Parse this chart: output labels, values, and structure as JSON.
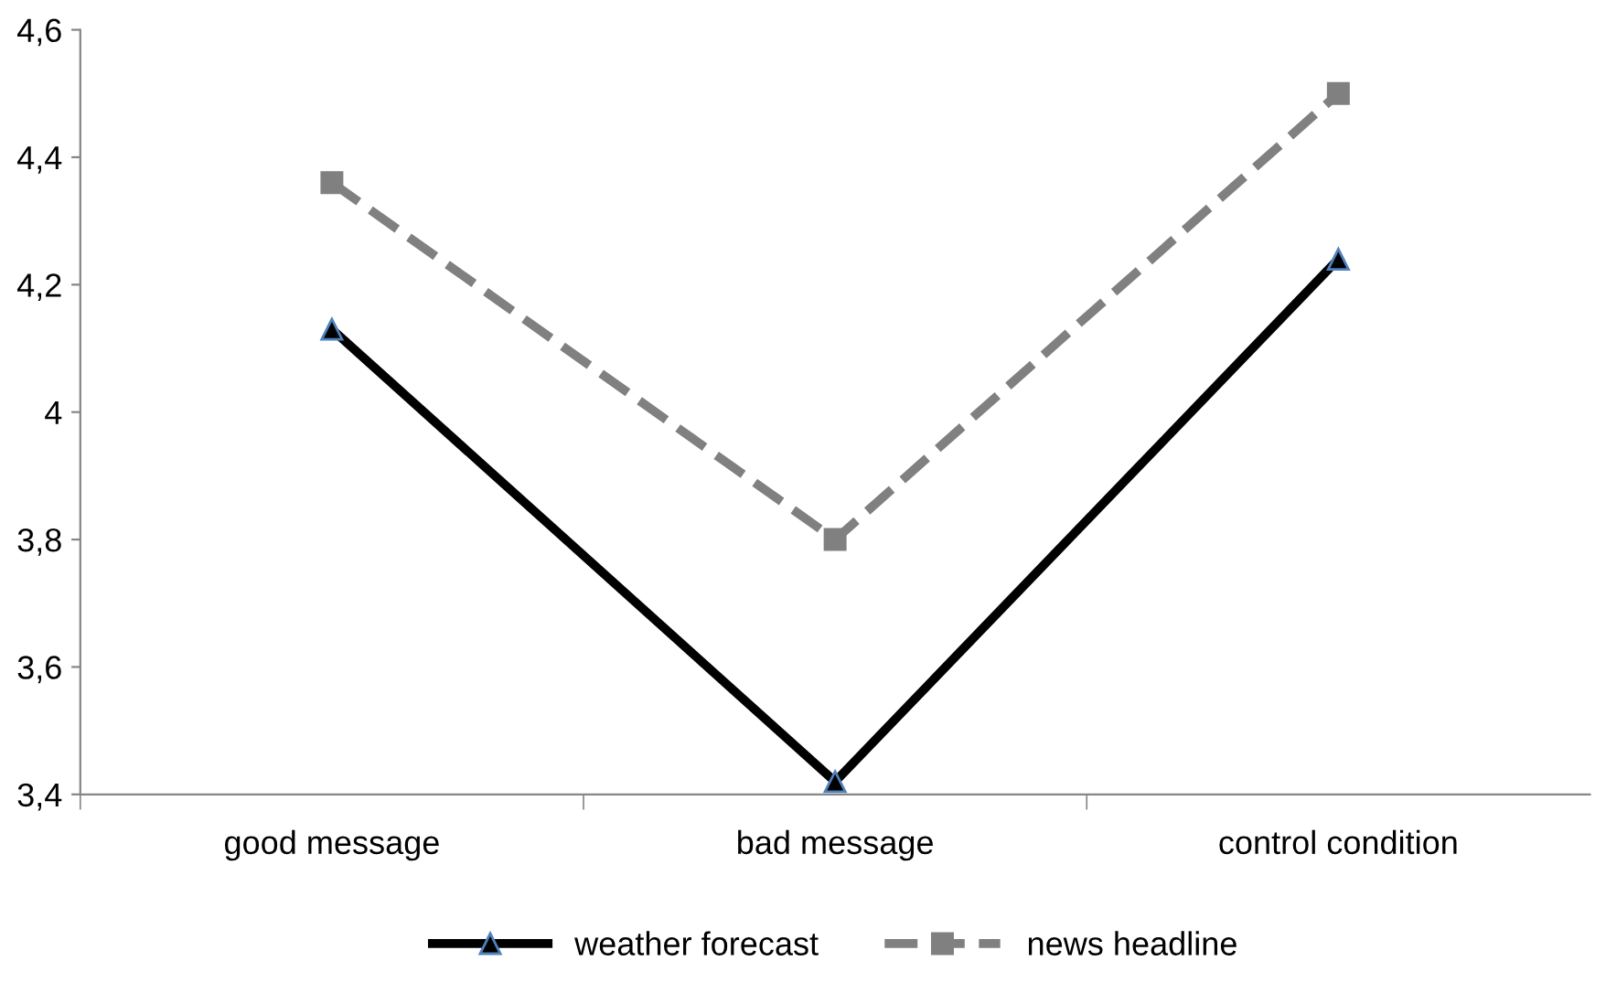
{
  "chart_data": {
    "type": "line",
    "categories": [
      "good message",
      "bad message",
      "control condition"
    ],
    "series": [
      {
        "name": "weather forecast",
        "color": "#000000",
        "marker": "triangle",
        "line_style": "solid",
        "values": [
          4.13,
          3.42,
          4.24
        ]
      },
      {
        "name": "news headline",
        "color": "#808080",
        "marker": "square",
        "line_style": "dashed",
        "values": [
          4.36,
          3.8,
          4.5
        ]
      }
    ],
    "ylim": [
      3.4,
      4.6
    ],
    "yticks": [
      {
        "value": 3.4,
        "label": "3,4"
      },
      {
        "value": 3.6,
        "label": "3,6"
      },
      {
        "value": 3.8,
        "label": "3,8"
      },
      4,
      {
        "value": 4.2,
        "label": "4,2"
      },
      {
        "value": 4.4,
        "label": "4,4"
      },
      {
        "value": 4.6,
        "label": "4,6"
      }
    ],
    "grid": false,
    "legend": "bottom"
  }
}
